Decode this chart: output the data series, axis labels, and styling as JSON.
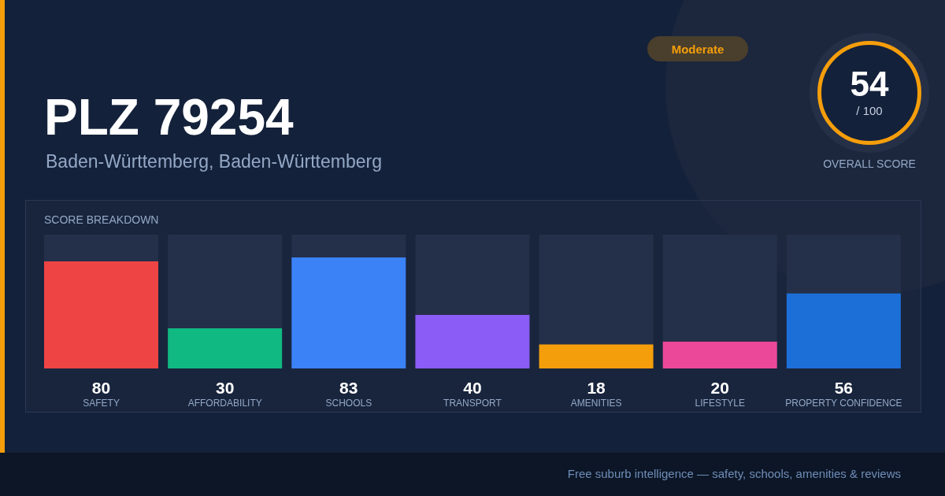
{
  "chart_data": {
    "type": "bar",
    "title": "PLZ 79254",
    "subtitle": "Baden-Württemberg, Baden-Württemberg",
    "xlabel": "SCORE BREAKDOWN",
    "annotations": [
      "Moderate",
      "54",
      "/ 100",
      "OVERALL SCORE",
      "Free suburb intelligence — safety, schools, amenities & reviews"
    ],
    "categories": [
      "SAFETY",
      "AFFORDABILITY",
      "SCHOOLS",
      "TRANSPORT",
      "AMENITIES",
      "LIFESTYLE",
      "PROPERTY CONFIDENCE"
    ],
    "values": [
      80,
      30,
      83,
      40,
      18,
      20,
      56
    ],
    "colors": [
      "#ef4444",
      "#10b981",
      "#3b82f6",
      "#8b5cf6",
      "#f59e0b",
      "#ec4899",
      "#1d6fd8"
    ],
    "ylim": [
      0,
      100
    ],
    "data_labels": true,
    "grid": false,
    "legend": false
  }
}
